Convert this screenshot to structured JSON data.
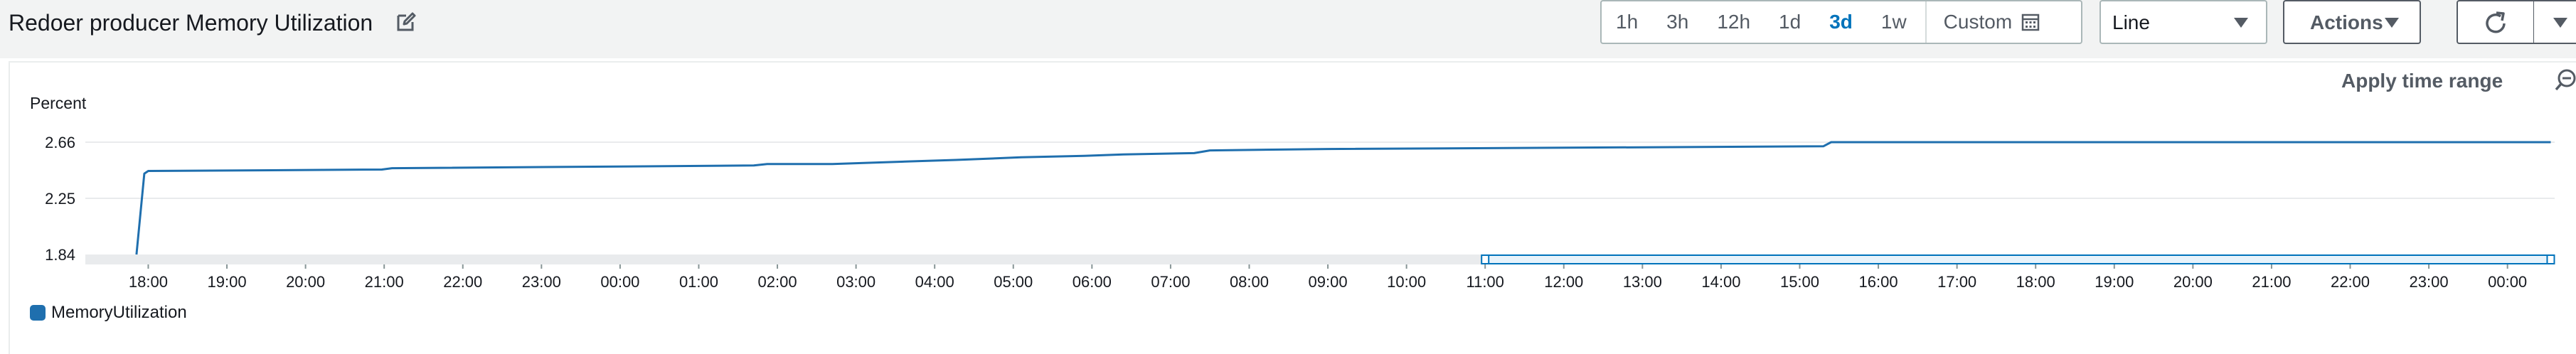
{
  "header": {
    "title": "Redoer producer Memory Utilization",
    "time_ranges": [
      "1h",
      "3h",
      "12h",
      "1d",
      "3d",
      "1w"
    ],
    "active_range": "3d",
    "custom_label": "Custom",
    "chart_type_select": "Line",
    "actions_label": "Actions"
  },
  "panel": {
    "apply_time_range_label": "Apply time range"
  },
  "colors": {
    "series": "#1f6fae",
    "accent": "#0073bb",
    "selection": "#0073bb"
  },
  "chart_data": {
    "type": "line",
    "ylabel": "Percent",
    "y_ticks": [
      "2.66",
      "2.25",
      "1.84"
    ],
    "ylim": [
      1.84,
      2.66
    ],
    "x_ticks": [
      "18:00",
      "19:00",
      "20:00",
      "21:00",
      "22:00",
      "23:00",
      "00:00",
      "01:00",
      "02:00",
      "03:00",
      "04:00",
      "05:00",
      "06:00",
      "07:00",
      "08:00",
      "09:00",
      "10:00",
      "11:00",
      "12:00",
      "13:00",
      "14:00",
      "15:00",
      "16:00",
      "17:00",
      "18:00",
      "19:00",
      "20:00",
      "21:00",
      "22:00",
      "23:00",
      "00:00"
    ],
    "xlim_hours": [
      -0.8,
      30.6
    ],
    "selection_range_hours": [
      17.0,
      30.55
    ],
    "grid": true,
    "legend_position": "bottom-left",
    "series": [
      {
        "name": "MemoryUtilization",
        "x_hours": [
          -0.15,
          -0.05,
          0.0,
          2.97,
          3.1,
          7.7,
          7.87,
          8.7,
          9.2,
          9.7,
          10.27,
          10.7,
          11.1,
          11.9,
          12.4,
          13.3,
          13.5,
          15.0,
          21.3,
          21.4,
          30.55
        ],
        "values": [
          1.84,
          2.43,
          2.45,
          2.46,
          2.47,
          2.49,
          2.5,
          2.5,
          2.51,
          2.52,
          2.53,
          2.54,
          2.55,
          2.56,
          2.57,
          2.58,
          2.6,
          2.61,
          2.63,
          2.66,
          2.66
        ]
      }
    ]
  }
}
